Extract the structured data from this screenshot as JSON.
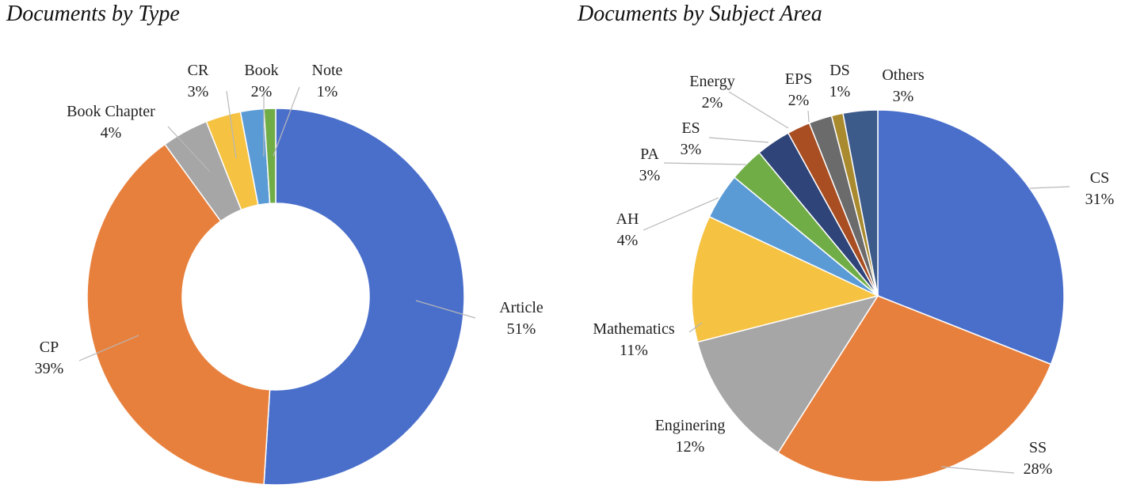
{
  "chart_data": [
    {
      "type": "pie",
      "title": "Documents by Type",
      "donut": true,
      "slices": [
        {
          "label": "Article",
          "value": 51,
          "display": "51%",
          "color": "#4a6fcb"
        },
        {
          "label": "CP",
          "value": 39,
          "display": "39%",
          "color": "#e8803d"
        },
        {
          "label": "Book Chapter",
          "value": 4,
          "display": "4%",
          "color": "#a6a6a6"
        },
        {
          "label": "CR",
          "value": 3,
          "display": "3%",
          "color": "#f5c242"
        },
        {
          "label": "Book",
          "value": 2,
          "display": "2%",
          "color": "#5b9bd5"
        },
        {
          "label": "Note",
          "value": 1,
          "display": "1%",
          "color": "#70ad47"
        }
      ]
    },
    {
      "type": "pie",
      "title": "Documents by Subject Area",
      "donut": false,
      "slices": [
        {
          "label": "CS",
          "value": 31,
          "display": "31%",
          "color": "#4a6fcb"
        },
        {
          "label": "SS",
          "value": 28,
          "display": "28%",
          "color": "#e8803d"
        },
        {
          "label": "Enginering",
          "value": 12,
          "display": "12%",
          "color": "#a6a6a6"
        },
        {
          "label": "Mathematics",
          "value": 11,
          "display": "11%",
          "color": "#f5c242"
        },
        {
          "label": "AH",
          "value": 4,
          "display": "4%",
          "color": "#5b9bd5"
        },
        {
          "label": "PA",
          "value": 3,
          "display": "3%",
          "color": "#70ad47"
        },
        {
          "label": "ES",
          "value": 3,
          "display": "3%",
          "color": "#2f4478"
        },
        {
          "label": "Energy",
          "value": 2,
          "display": "2%",
          "color": "#a94e22"
        },
        {
          "label": "EPS",
          "value": 2,
          "display": "2%",
          "color": "#6b6b6b"
        },
        {
          "label": "DS",
          "value": 1,
          "display": "1%",
          "color": "#a98a2e"
        },
        {
          "label": "Others",
          "value": 3,
          "display": "3%",
          "color": "#3c5a8a"
        }
      ]
    }
  ]
}
